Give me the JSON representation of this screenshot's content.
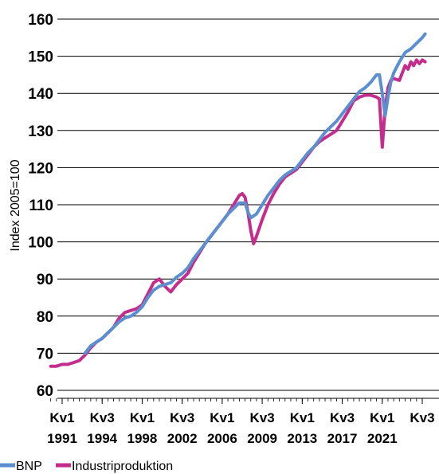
{
  "chart_data": {
    "type": "line",
    "ylabel": "Index 2005=100",
    "xlabel": "",
    "ylim": [
      60,
      160
    ],
    "y_ticks": [
      "60",
      "70",
      "80",
      "90",
      "100",
      "110",
      "120",
      "130",
      "140",
      "150",
      "160"
    ],
    "grid": "horizontal",
    "legend_position": "bottom-left",
    "x_start_quarter": "1990 Kv1",
    "x_tick_labels": [
      {
        "quarter": "Kv1",
        "year": "1991",
        "t": 1991.0
      },
      {
        "quarter": "Kv3",
        "year": "1994",
        "t": 1994.5
      },
      {
        "quarter": "Kv1",
        "year": "1998",
        "t": 1998.0
      },
      {
        "quarter": "Kv3",
        "year": "2002",
        "t": 2001.5
      },
      {
        "quarter": "Kv1",
        "year": "2006",
        "t": 2005.0
      },
      {
        "quarter": "Kv3",
        "year": "2009",
        "t": 2008.5
      },
      {
        "quarter": "Kv1",
        "year": "2013",
        "t": 2012.0
      },
      {
        "quarter": "Kv3",
        "year": "2017",
        "t": 2015.5
      },
      {
        "quarter": "Kv1",
        "year": "2021",
        "t": 2019.0
      },
      {
        "quarter": "Kv3",
        "year": "",
        "t": 2022.5
      }
    ],
    "series": [
      {
        "name": "BNP",
        "color": "#5b8fd0",
        "points": [
          [
            1993.0,
            70.0
          ],
          [
            1993.5,
            72.0
          ],
          [
            1994.0,
            73.0
          ],
          [
            1994.5,
            74.0
          ],
          [
            1995.0,
            75.5
          ],
          [
            1995.5,
            77.0
          ],
          [
            1996.0,
            78.5
          ],
          [
            1996.5,
            79.5
          ],
          [
            1997.0,
            80.0
          ],
          [
            1997.5,
            81.0
          ],
          [
            1998.0,
            82.5
          ],
          [
            1998.5,
            85.0
          ],
          [
            1999.0,
            87.0
          ],
          [
            1999.5,
            88.0
          ],
          [
            2000.0,
            88.5
          ],
          [
            2000.5,
            89.0
          ],
          [
            2001.0,
            90.5
          ],
          [
            2001.5,
            91.5
          ],
          [
            2002.0,
            93.0
          ],
          [
            2002.5,
            95.5
          ],
          [
            2003.0,
            97.5
          ],
          [
            2003.5,
            99.5
          ],
          [
            2004.0,
            101.5
          ],
          [
            2004.5,
            103.5
          ],
          [
            2005.0,
            105.5
          ],
          [
            2005.5,
            107.5
          ],
          [
            2006.0,
            109.0
          ],
          [
            2006.5,
            110.5
          ],
          [
            2007.0,
            110.5
          ],
          [
            2007.25,
            108.0
          ],
          [
            2007.5,
            106.5
          ],
          [
            2008.0,
            107.5
          ],
          [
            2008.5,
            110.0
          ],
          [
            2009.0,
            112.5
          ],
          [
            2009.5,
            114.5
          ],
          [
            2010.0,
            116.5
          ],
          [
            2010.5,
            118.0
          ],
          [
            2011.0,
            119.0
          ],
          [
            2011.5,
            120.0
          ],
          [
            2012.0,
            122.0
          ],
          [
            2012.5,
            124.0
          ],
          [
            2013.0,
            125.5
          ],
          [
            2013.5,
            127.5
          ],
          [
            2014.0,
            129.5
          ],
          [
            2014.5,
            131.0
          ],
          [
            2015.0,
            132.5
          ],
          [
            2015.5,
            134.5
          ],
          [
            2016.0,
            136.5
          ],
          [
            2016.5,
            138.5
          ],
          [
            2017.0,
            140.5
          ],
          [
            2017.5,
            141.5
          ],
          [
            2018.0,
            143.0
          ],
          [
            2018.5,
            145.0
          ],
          [
            2018.75,
            145.0
          ],
          [
            2019.0,
            140.0
          ],
          [
            2019.25,
            134.0
          ],
          [
            2019.5,
            139.0
          ],
          [
            2019.75,
            143.0
          ],
          [
            2020.0,
            145.5
          ],
          [
            2020.5,
            148.5
          ],
          [
            2021.0,
            151.0
          ],
          [
            2021.5,
            152.0
          ],
          [
            2022.0,
            153.5
          ],
          [
            2022.5,
            155.0
          ],
          [
            2022.75,
            156.0
          ]
        ]
      },
      {
        "name": "Industriproduktion",
        "color": "#c42d8c",
        "points": [
          [
            1990.0,
            66.5
          ],
          [
            1990.5,
            66.5
          ],
          [
            1991.0,
            67.0
          ],
          [
            1991.5,
            67.0
          ],
          [
            1992.0,
            67.5
          ],
          [
            1992.5,
            68.0
          ],
          [
            1993.0,
            69.5
          ],
          [
            1993.5,
            71.5
          ],
          [
            1994.0,
            73.0
          ],
          [
            1994.5,
            74.0
          ],
          [
            1995.0,
            75.5
          ],
          [
            1995.5,
            77.0
          ],
          [
            1996.0,
            79.5
          ],
          [
            1996.5,
            81.0
          ],
          [
            1997.0,
            81.5
          ],
          [
            1997.5,
            82.0
          ],
          [
            1998.0,
            83.0
          ],
          [
            1998.5,
            86.0
          ],
          [
            1999.0,
            89.0
          ],
          [
            1999.5,
            90.0
          ],
          [
            2000.0,
            88.0
          ],
          [
            2000.5,
            86.5
          ],
          [
            2001.0,
            88.5
          ],
          [
            2001.5,
            90.0
          ],
          [
            2002.0,
            91.5
          ],
          [
            2002.5,
            94.5
          ],
          [
            2003.0,
            97.0
          ],
          [
            2003.5,
            99.5
          ],
          [
            2004.0,
            101.5
          ],
          [
            2004.5,
            103.5
          ],
          [
            2005.0,
            105.5
          ],
          [
            2005.5,
            107.5
          ],
          [
            2006.0,
            110.0
          ],
          [
            2006.5,
            112.5
          ],
          [
            2006.75,
            113.0
          ],
          [
            2007.0,
            112.0
          ],
          [
            2007.25,
            108.0
          ],
          [
            2007.5,
            103.0
          ],
          [
            2007.75,
            99.5
          ],
          [
            2008.0,
            101.5
          ],
          [
            2008.5,
            106.0
          ],
          [
            2009.0,
            110.0
          ],
          [
            2009.5,
            113.0
          ],
          [
            2010.0,
            115.5
          ],
          [
            2010.5,
            117.5
          ],
          [
            2011.0,
            118.5
          ],
          [
            2011.5,
            119.5
          ],
          [
            2012.0,
            121.5
          ],
          [
            2012.5,
            123.5
          ],
          [
            2013.0,
            125.5
          ],
          [
            2013.5,
            127.0
          ],
          [
            2014.0,
            128.0
          ],
          [
            2014.5,
            129.0
          ],
          [
            2015.0,
            130.0
          ],
          [
            2015.5,
            132.5
          ],
          [
            2016.0,
            135.0
          ],
          [
            2016.5,
            138.0
          ],
          [
            2017.0,
            139.0
          ],
          [
            2017.5,
            139.5
          ],
          [
            2018.0,
            139.5
          ],
          [
            2018.5,
            139.0
          ],
          [
            2018.75,
            138.5
          ],
          [
            2019.0,
            125.5
          ],
          [
            2019.25,
            136.0
          ],
          [
            2019.5,
            141.5
          ],
          [
            2019.75,
            143.5
          ],
          [
            2020.0,
            144.0
          ],
          [
            2020.5,
            143.5
          ],
          [
            2021.0,
            147.5
          ],
          [
            2021.25,
            146.5
          ],
          [
            2021.5,
            148.5
          ],
          [
            2021.75,
            147.5
          ],
          [
            2022.0,
            149.0
          ],
          [
            2022.25,
            148.0
          ],
          [
            2022.5,
            149.0
          ],
          [
            2022.75,
            148.5
          ]
        ]
      }
    ]
  }
}
